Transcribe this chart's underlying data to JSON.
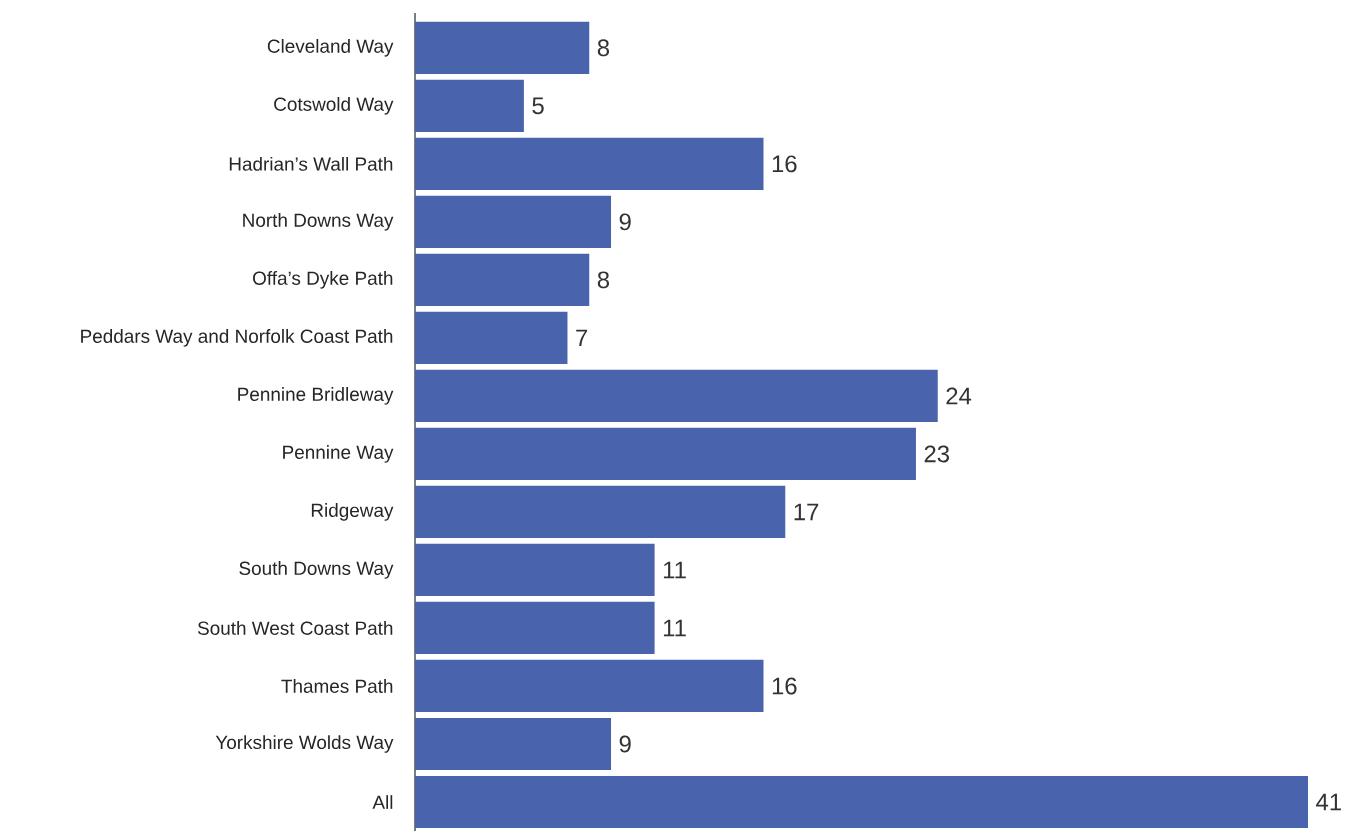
{
  "chart_data": {
    "type": "bar",
    "orientation": "horizontal",
    "data_labels": true,
    "color": "#4a63ad",
    "categories": [
      "Cleveland Way",
      "Cotswold Way",
      "Hadrian’s Wall Path",
      "North Downs Way",
      "Offa’s Dyke Path",
      "Peddars Way and Norfolk Coast Path",
      "Pennine Bridleway",
      "Pennine Way",
      "Ridgeway",
      "South Downs Way",
      "South West Coast Path",
      "Thames Path",
      "Yorkshire Wolds Way",
      "All"
    ],
    "values": [
      8,
      5,
      16,
      9,
      8,
      7,
      24,
      23,
      17,
      11,
      11,
      16,
      9,
      41
    ]
  }
}
